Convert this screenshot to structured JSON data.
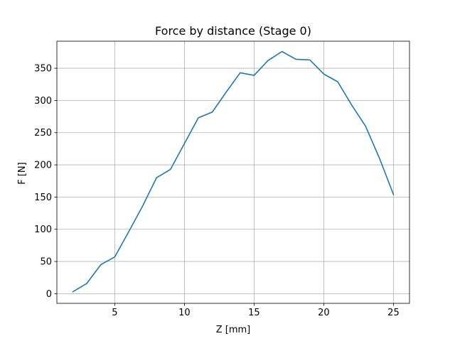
{
  "chart_data": {
    "type": "line",
    "title": "Force by distance (Stage 0)",
    "xlabel": "Z [mm]",
    "ylabel": "F [N]",
    "xlim": [
      0.85,
      26.15
    ],
    "ylim": [
      -15,
      392
    ],
    "grid": true,
    "x_ticks": [
      5,
      10,
      15,
      20,
      25
    ],
    "y_ticks": [
      0,
      50,
      100,
      150,
      200,
      250,
      300,
      350
    ],
    "series": [
      {
        "color": "#1f77b4",
        "x": [
          2,
          3,
          4,
          5,
          6,
          7,
          8,
          9,
          10,
          11,
          12,
          13,
          14,
          15,
          16,
          17,
          18,
          19,
          20,
          21,
          22,
          23,
          24,
          25
        ],
        "y": [
          3,
          16,
          45,
          57,
          96,
          136,
          180,
          193,
          233,
          273,
          282,
          313,
          343,
          339,
          362,
          376,
          364,
          363,
          341,
          329,
          293,
          260,
          210,
          154
        ]
      }
    ]
  }
}
